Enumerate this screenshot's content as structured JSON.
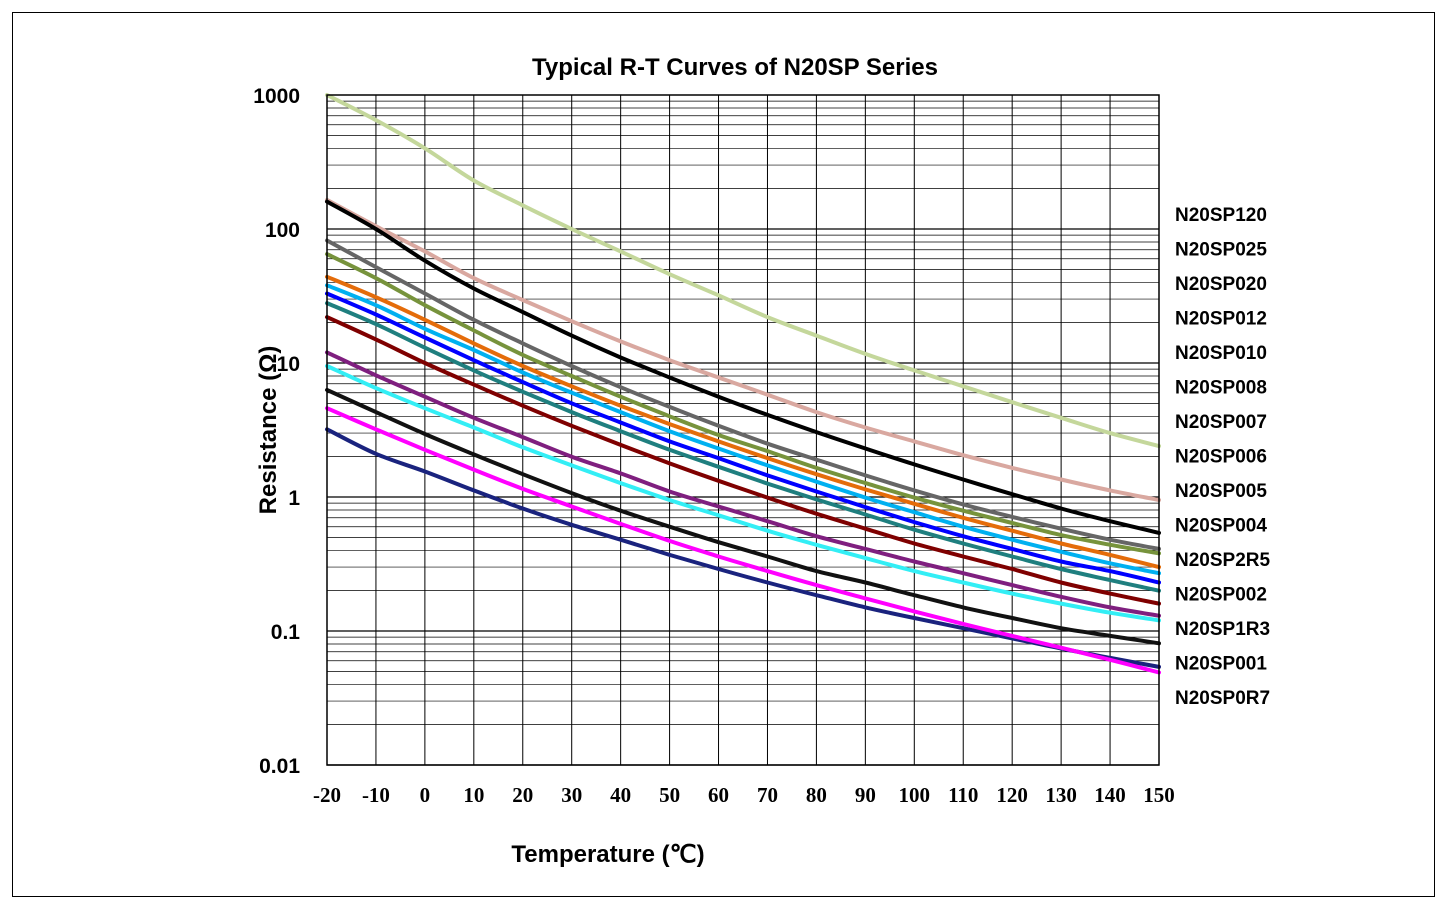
{
  "chart_data": {
    "type": "line",
    "title": "Typical R-T Curves of  N20SP Series",
    "xlabel": "Temperature (℃)",
    "ylabel": "Resistance (Ω)",
    "xlim": [
      -20,
      150
    ],
    "ylim": [
      0.01,
      1000
    ],
    "yscale": "log",
    "grid": true,
    "legend_position": "right",
    "x_ticks": [
      "-20",
      "-10",
      "0",
      "10",
      "20",
      "30",
      "40",
      "50",
      "60",
      "70",
      "80",
      "90",
      "100",
      "110",
      "120",
      "130",
      "140",
      "150"
    ],
    "y_ticks": [
      "1000",
      "100",
      "10",
      "1",
      "0.1",
      "0.01"
    ],
    "legend": [
      "N20SP120",
      "N20SP025",
      "N20SP020",
      "N20SP012",
      "N20SP010",
      "N20SP008",
      "N20SP007",
      "N20SP006",
      "N20SP005",
      "N20SP004",
      "N20SP2R5",
      "N20SP002",
      "N20SP1R3",
      "N20SP001",
      "N20SP0R7"
    ],
    "x": [
      -20,
      -10,
      0,
      10,
      20,
      30,
      40,
      50,
      60,
      70,
      80,
      90,
      100,
      110,
      120,
      130,
      140,
      150
    ],
    "series": [
      {
        "color": "#c4d79b",
        "values": [
          1000,
          650,
          400,
          230,
          150,
          100,
          68,
          46,
          32,
          22,
          16,
          11.7,
          8.8,
          6.7,
          5.1,
          3.9,
          3.0,
          2.4
        ]
      },
      {
        "color": "#d9a8a0",
        "values": [
          165,
          105,
          68,
          43,
          29.5,
          20.5,
          14.5,
          10.5,
          7.8,
          5.8,
          4.3,
          3.3,
          2.6,
          2.05,
          1.65,
          1.35,
          1.12,
          0.95
        ]
      },
      {
        "color": "#000000",
        "values": [
          160,
          100,
          58,
          36,
          24,
          16,
          11,
          7.8,
          5.6,
          4.1,
          3.05,
          2.3,
          1.75,
          1.35,
          1.05,
          0.82,
          0.66,
          0.54
        ]
      },
      {
        "color": "#666666",
        "values": [
          82,
          52,
          33,
          21,
          14,
          9.5,
          6.6,
          4.7,
          3.4,
          2.5,
          1.9,
          1.45,
          1.12,
          0.88,
          0.71,
          0.58,
          0.48,
          0.41
        ]
      },
      {
        "color": "#77933c",
        "values": [
          65,
          43,
          27,
          17.5,
          11.5,
          8,
          5.6,
          4,
          2.9,
          2.2,
          1.65,
          1.27,
          0.99,
          0.79,
          0.64,
          0.52,
          0.44,
          0.38
        ]
      },
      {
        "color": "#e46c0a",
        "values": [
          44,
          31,
          21,
          14,
          9.5,
          6.7,
          4.8,
          3.5,
          2.6,
          1.95,
          1.48,
          1.14,
          0.89,
          0.7,
          0.56,
          0.45,
          0.37,
          0.3
        ]
      },
      {
        "color": "#00b0f0",
        "values": [
          38,
          27,
          18,
          12.5,
          8.5,
          6,
          4.3,
          3.1,
          2.3,
          1.72,
          1.3,
          0.99,
          0.77,
          0.6,
          0.48,
          0.39,
          0.32,
          0.27
        ]
      },
      {
        "color": "#0000ff",
        "values": [
          33,
          23,
          15.5,
          10.5,
          7.2,
          5,
          3.6,
          2.6,
          1.95,
          1.45,
          1.1,
          0.84,
          0.65,
          0.51,
          0.41,
          0.33,
          0.28,
          0.23
        ]
      },
      {
        "color": "#1f7f7f",
        "values": [
          28,
          19.5,
          13,
          8.8,
          6.1,
          4.3,
          3.1,
          2.25,
          1.68,
          1.26,
          0.96,
          0.74,
          0.57,
          0.45,
          0.36,
          0.29,
          0.24,
          0.2
        ]
      },
      {
        "color": "#7f0000",
        "values": [
          22,
          15,
          10,
          6.9,
          4.8,
          3.4,
          2.45,
          1.78,
          1.32,
          0.99,
          0.75,
          0.58,
          0.45,
          0.36,
          0.29,
          0.23,
          0.19,
          0.16
        ]
      },
      {
        "color": "#7f1f7f",
        "values": [
          12,
          8.1,
          5.6,
          3.9,
          2.8,
          2.0,
          1.5,
          1.1,
          0.85,
          0.66,
          0.51,
          0.41,
          0.33,
          0.27,
          0.22,
          0.18,
          0.15,
          0.13
        ]
      },
      {
        "color": "#33eef5",
        "values": [
          9.5,
          6.5,
          4.6,
          3.3,
          2.35,
          1.72,
          1.27,
          0.95,
          0.73,
          0.56,
          0.44,
          0.35,
          0.28,
          0.23,
          0.19,
          0.16,
          0.137,
          0.12
        ]
      },
      {
        "color": "#111111",
        "values": [
          6.3,
          4.3,
          2.95,
          2.08,
          1.48,
          1.07,
          0.79,
          0.6,
          0.46,
          0.36,
          0.28,
          0.23,
          0.185,
          0.15,
          0.125,
          0.105,
          0.092,
          0.081
        ]
      },
      {
        "color": "#1a237e",
        "values": [
          3.2,
          2.1,
          1.55,
          1.12,
          0.82,
          0.62,
          0.48,
          0.37,
          0.29,
          0.23,
          0.185,
          0.15,
          0.125,
          0.105,
          0.088,
          0.074,
          0.063,
          0.054
        ]
      },
      {
        "color": "#ff00ff",
        "values": [
          4.6,
          3.2,
          2.25,
          1.6,
          1.15,
          0.85,
          0.63,
          0.47,
          0.36,
          0.28,
          0.22,
          0.175,
          0.14,
          0.113,
          0.092,
          0.075,
          0.061,
          0.049
        ]
      }
    ]
  }
}
